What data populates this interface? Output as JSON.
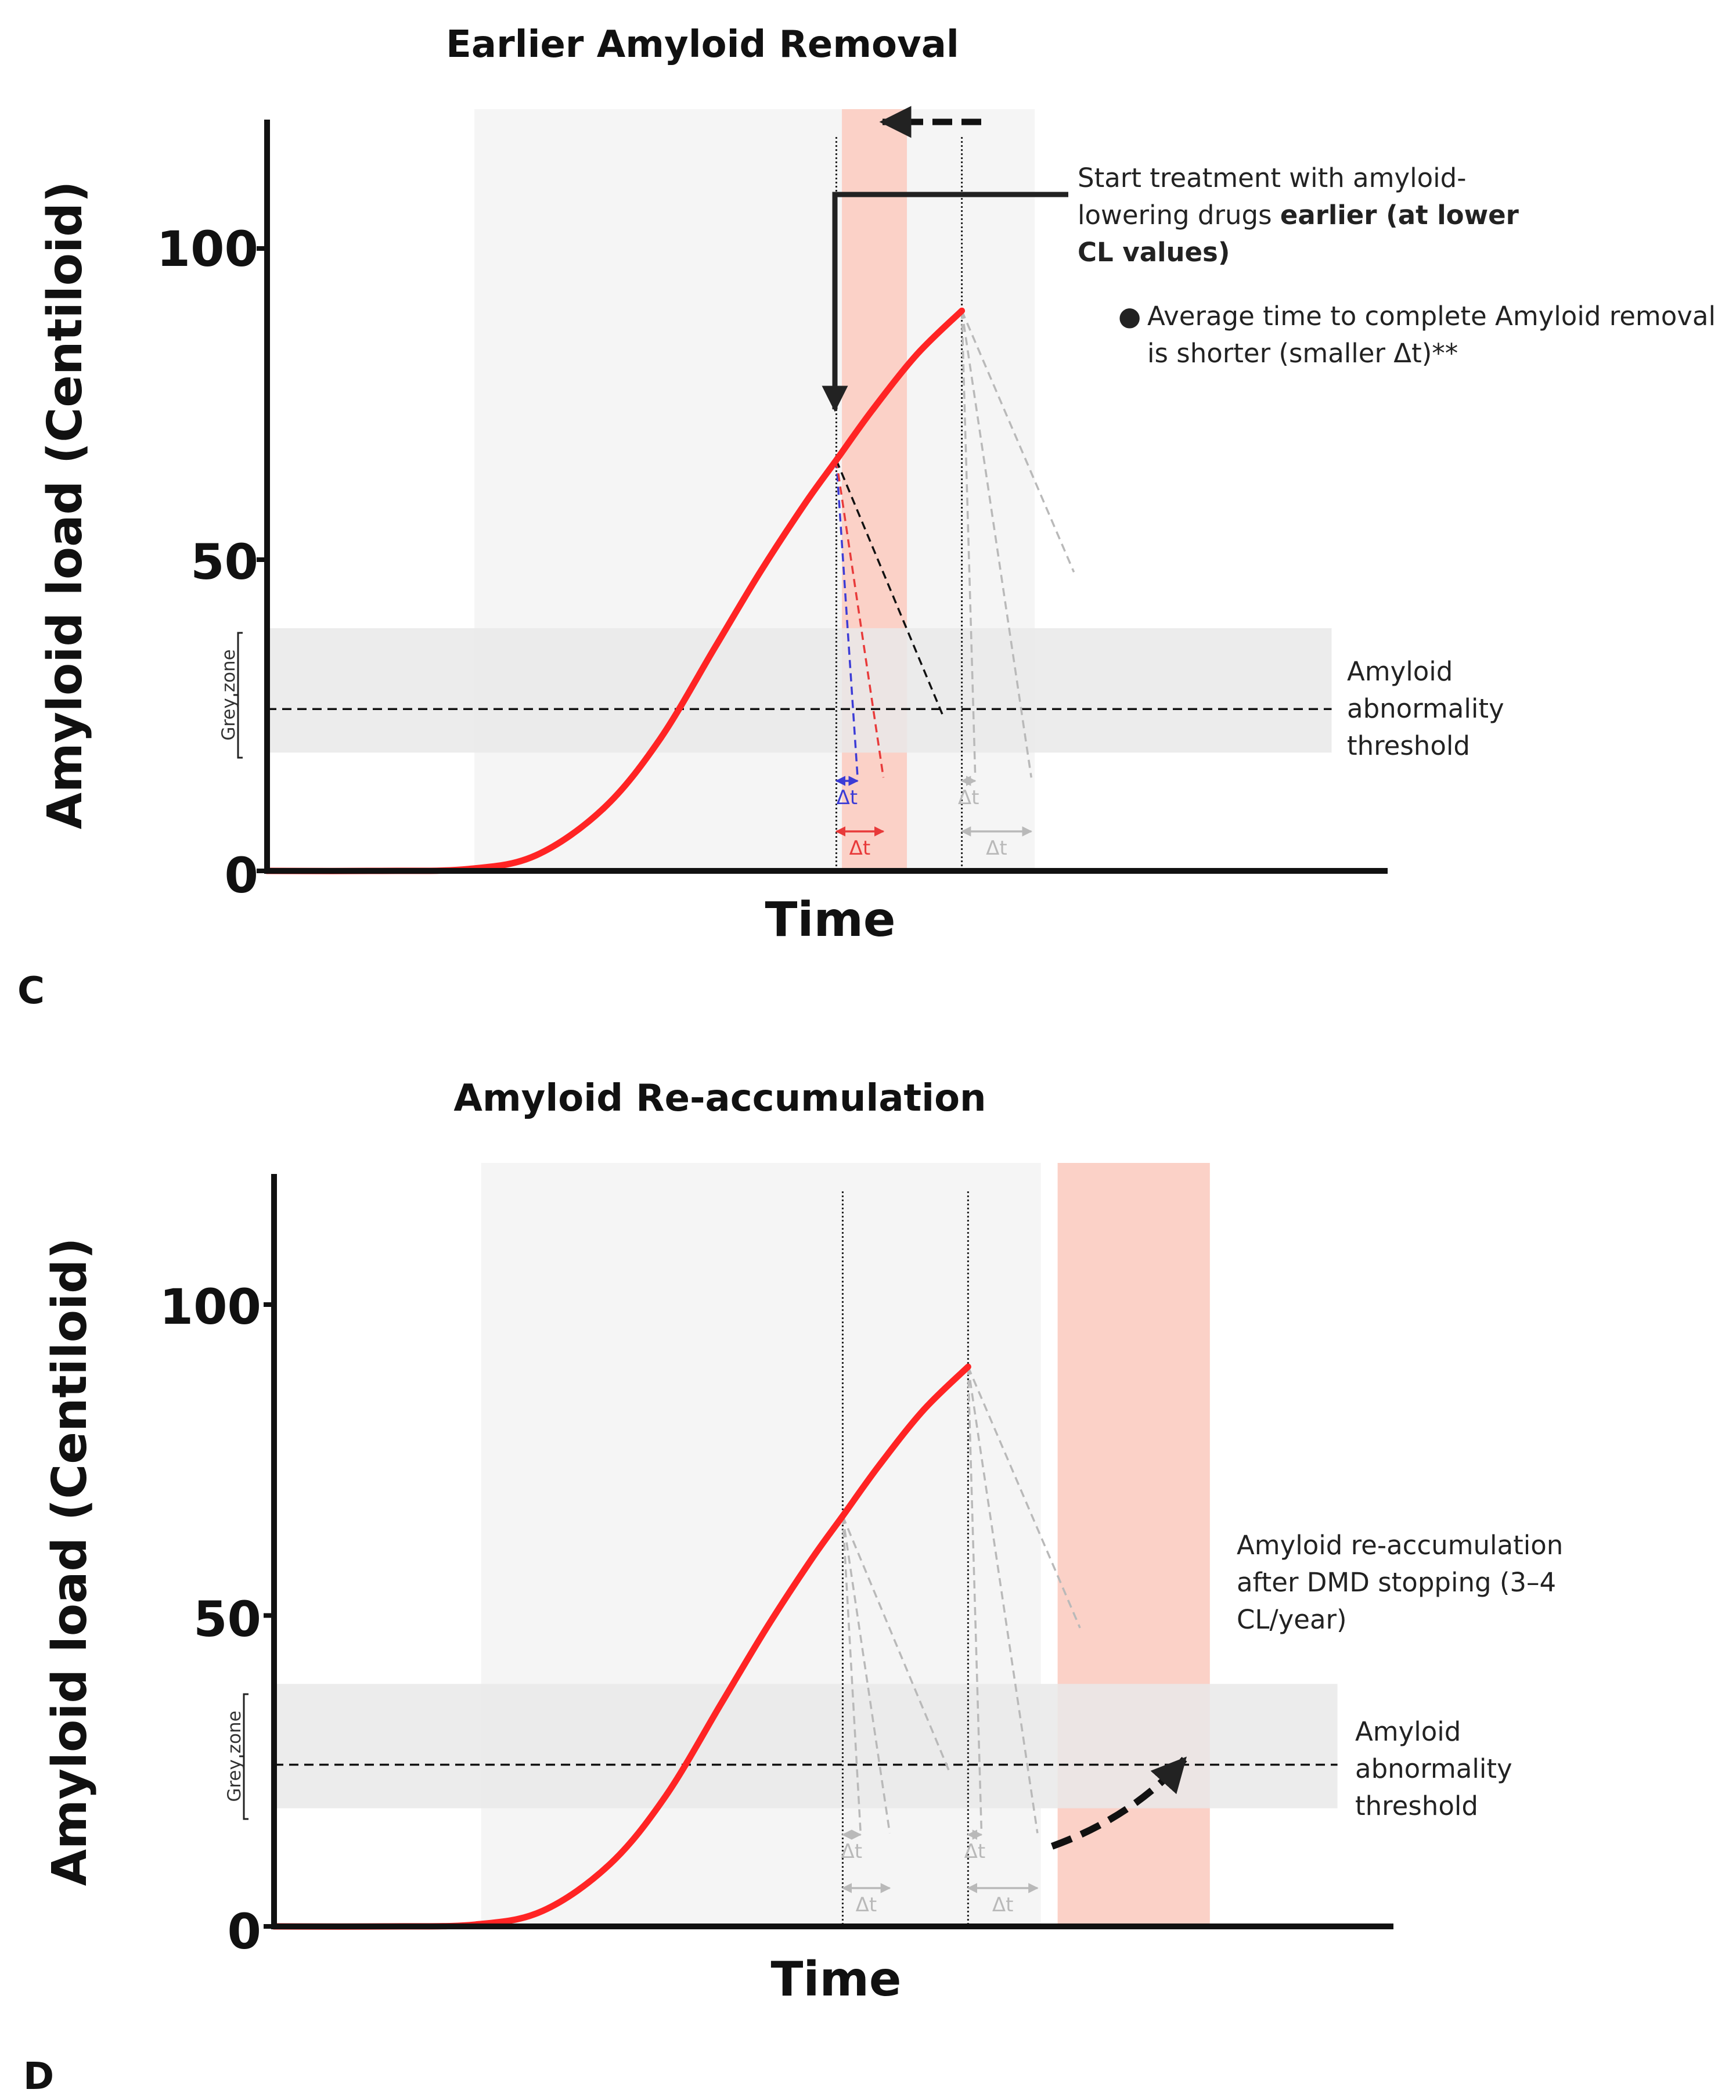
{
  "colors": {
    "curve": "#ff2424",
    "highlight": "#fbcfc4",
    "band": "#e9e9e9",
    "background_band": "#f5f5f5",
    "blue": "#3c3cd6",
    "red_dash": "#e83a3a",
    "grey_dash": "#b9b9b9",
    "black": "#111111"
  },
  "chart_data": [
    {
      "type": "line",
      "panel_label": "C",
      "title": "Earlier Amyloid Removal",
      "xlabel": "Time",
      "ylabel": "Amyloid load (Centiloid)",
      "yticks": [
        0,
        50,
        100
      ],
      "ylim": [
        0,
        120
      ],
      "xlim": [
        0,
        100
      ],
      "threshold": 26,
      "grey_zone": [
        19,
        39
      ],
      "grey_zone_label": "Grey zone",
      "threshold_label": [
        "Amyloid",
        "abnormality",
        "threshold"
      ],
      "background_span_x": [
        18.5,
        68.5
      ],
      "highlight_span_x": [
        51.3,
        57.1
      ],
      "start_lines_x": [
        50.8,
        62.0
      ],
      "series": [
        {
          "name": "Amyloid accumulation",
          "x": [
            0,
            10,
            18,
            24,
            30,
            35,
            40,
            44,
            48,
            50.8,
            54,
            58,
            62
          ],
          "y": [
            0,
            0,
            0.3,
            2.5,
            10,
            21,
            36,
            48,
            59,
            66,
            74,
            83,
            90
          ]
        }
      ],
      "removal_lines": [
        {
          "color": "blue",
          "from": [
            50.8,
            66
          ],
          "to": [
            52.7,
            15
          ]
        },
        {
          "color": "red_dash",
          "from": [
            50.8,
            66
          ],
          "to": [
            55.0,
            15
          ]
        },
        {
          "color": "black",
          "from": [
            50.8,
            66
          ],
          "to": [
            60.3,
            25
          ]
        },
        {
          "color": "grey_dash",
          "from": [
            62.0,
            90
          ],
          "to": [
            63.2,
            15
          ]
        },
        {
          "color": "grey_dash",
          "from": [
            62.0,
            90
          ],
          "to": [
            68.2,
            15
          ]
        },
        {
          "color": "grey_dash",
          "from": [
            62.0,
            90
          ],
          "to": [
            72.0,
            48
          ]
        }
      ],
      "delta_labels": [
        {
          "text": "Δt",
          "color": "blue"
        },
        {
          "text": "Δt",
          "color": "red_dash"
        },
        {
          "text": "Δt",
          "color": "grey_dash"
        },
        {
          "text": "Δt",
          "color": "grey_dash"
        }
      ],
      "annotations": {
        "start_line1": "Start treatment with amyloid-",
        "start_line2_normal": "lowering drugs ",
        "start_line2_bold": "earlier (at lower",
        "start_line3_bold": "CL values)",
        "bullet": "●",
        "avg_line1": "Average time to complete Amyloid removal",
        "avg_line2": "is shorter (smaller Δt)**"
      }
    },
    {
      "type": "line",
      "panel_label": "D",
      "title": "Amyloid Re-accumulation",
      "xlabel": "Time",
      "ylabel": "Amyloid load (Centiloid)",
      "yticks": [
        0,
        50,
        100
      ],
      "ylim": [
        0,
        120
      ],
      "xlim": [
        0,
        100
      ],
      "threshold": 26,
      "grey_zone": [
        19,
        39
      ],
      "grey_zone_label": "Grey zone",
      "threshold_label": [
        "Amyloid",
        "abnormality",
        "threshold"
      ],
      "background_span_x": [
        18.5,
        68.5
      ],
      "highlight_span_x": [
        70.0,
        83.6
      ],
      "start_lines_x": [
        50.8,
        62.0
      ],
      "series": [
        {
          "name": "Amyloid accumulation",
          "x": [
            0,
            10,
            18,
            24,
            30,
            35,
            40,
            44,
            48,
            50.8,
            54,
            58,
            62
          ],
          "y": [
            0,
            0,
            0.3,
            2.5,
            10,
            21,
            36,
            48,
            59,
            66,
            74,
            83,
            90
          ]
        }
      ],
      "removal_lines": [
        {
          "color": "grey_dash",
          "from": [
            50.8,
            66
          ],
          "to": [
            52.4,
            15
          ]
        },
        {
          "color": "grey_dash",
          "from": [
            50.8,
            66
          ],
          "to": [
            55.0,
            15
          ]
        },
        {
          "color": "grey_dash",
          "from": [
            50.8,
            66
          ],
          "to": [
            60.3,
            25
          ]
        },
        {
          "color": "grey_dash",
          "from": [
            62.0,
            90
          ],
          "to": [
            63.2,
            15
          ]
        },
        {
          "color": "grey_dash",
          "from": [
            62.0,
            90
          ],
          "to": [
            68.2,
            15
          ]
        },
        {
          "color": "grey_dash",
          "from": [
            62.0,
            90
          ],
          "to": [
            72.0,
            48
          ]
        }
      ],
      "delta_labels": [
        {
          "text": "Δt",
          "color": "grey_dash"
        },
        {
          "text": "Δt",
          "color": "grey_dash"
        },
        {
          "text": "Δt",
          "color": "grey_dash"
        },
        {
          "text": "Δt",
          "color": "grey_dash"
        }
      ],
      "annotations": {
        "reaccum_line1": "Amyloid re-accumulation",
        "reaccum_line2": "after DMD stopping (3–4",
        "reaccum_line3": "CL/year)"
      }
    }
  ]
}
